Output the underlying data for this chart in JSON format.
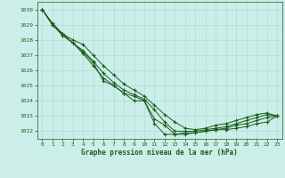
{
  "title": "Graphe pression niveau de la mer (hPa)",
  "bg_color": "#cceee8",
  "grid_color": "#aadddd",
  "line_color": "#1a5c1a",
  "marker_color": "#1a5c1a",
  "xlim": [
    -0.5,
    23.5
  ],
  "ylim": [
    1021.5,
    1030.5
  ],
  "yticks": [
    1022,
    1023,
    1024,
    1025,
    1026,
    1027,
    1028,
    1029,
    1030
  ],
  "xticks": [
    0,
    1,
    2,
    3,
    4,
    5,
    6,
    7,
    8,
    9,
    10,
    11,
    12,
    13,
    14,
    15,
    16,
    17,
    18,
    19,
    20,
    21,
    22,
    23
  ],
  "series": [
    [
      1030.0,
      1029.0,
      1028.3,
      1027.8,
      1027.2,
      1026.5,
      1025.3,
      1025.0,
      1024.5,
      1024.0,
      1024.0,
      1022.5,
      1021.8,
      1021.8,
      1021.9,
      1021.9,
      1022.0,
      1022.1,
      1022.1,
      1022.2,
      1022.3,
      1022.5,
      1022.6,
      1023.0
    ],
    [
      1030.0,
      1029.0,
      1028.3,
      1027.8,
      1027.1,
      1026.3,
      1025.5,
      1025.0,
      1024.5,
      1024.3,
      1024.0,
      1022.8,
      1022.4,
      1021.8,
      1021.8,
      1021.9,
      1022.0,
      1022.1,
      1022.2,
      1022.4,
      1022.5,
      1022.7,
      1022.9,
      1023.0
    ],
    [
      1030.0,
      1029.1,
      1028.4,
      1027.8,
      1027.3,
      1026.6,
      1025.8,
      1025.2,
      1024.7,
      1024.4,
      1024.1,
      1023.4,
      1022.6,
      1022.0,
      1022.0,
      1022.0,
      1022.1,
      1022.2,
      1022.3,
      1022.5,
      1022.7,
      1022.9,
      1023.1,
      1023.0
    ],
    [
      1030.0,
      1029.0,
      1028.4,
      1028.0,
      1027.7,
      1027.0,
      1026.3,
      1025.7,
      1025.1,
      1024.7,
      1024.3,
      1023.7,
      1023.1,
      1022.6,
      1022.2,
      1022.1,
      1022.2,
      1022.4,
      1022.5,
      1022.7,
      1022.9,
      1023.1,
      1023.2,
      1023.0
    ]
  ]
}
